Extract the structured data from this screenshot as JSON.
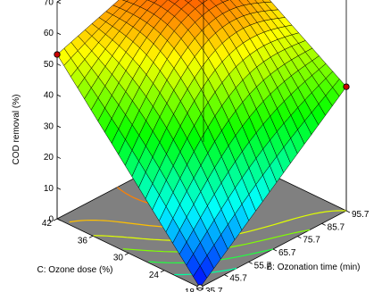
{
  "chart_data": {
    "type": "surface3d",
    "title": "",
    "zlabel": "COD removal  (%)",
    "xlabel": "C: Ozone dose (%)",
    "ylabel": "B: Ozonation time (min)",
    "z_ticks": [
      "0",
      "10",
      "20",
      "30",
      "40",
      "50",
      "60",
      "70"
    ],
    "x_ticks": [
      "18",
      "24",
      "30",
      "36",
      "42"
    ],
    "y_ticks": [
      "35.7",
      "45.7",
      "55.7",
      "65.7",
      "75.7",
      "85.7",
      "95.7"
    ],
    "x_range": [
      18,
      42
    ],
    "y_range": [
      35.7,
      95.7
    ],
    "z_range": [
      0,
      70
    ],
    "grid_size": 21,
    "surface_corners": [
      {
        "ozone_dose": 18,
        "ozonation_time": 35.7,
        "cod_removal": 0
      },
      {
        "ozone_dose": 42,
        "ozonation_time": 35.7,
        "cod_removal": 53
      },
      {
        "ozone_dose": 18,
        "ozonation_time": 95.7,
        "cod_removal": 40
      },
      {
        "ozone_dose": 42,
        "ozonation_time": 95.7,
        "cod_removal": 70
      }
    ],
    "design_points": [
      {
        "ozone_dose": 18,
        "ozonation_time": 35.7,
        "cod_removal": 0
      },
      {
        "ozone_dose": 42,
        "ozonation_time": 35.7,
        "cod_removal": 53
      },
      {
        "ozone_dose": 18,
        "ozonation_time": 95.7,
        "cod_removal": 40
      },
      {
        "ozone_dose": 42,
        "ozonation_time": 95.7,
        "cod_removal": 70
      }
    ],
    "colormap": [
      "#0000ff",
      "#00ffff",
      "#00ff00",
      "#ffff00",
      "#ff0000"
    ],
    "floor_color": "#808080",
    "contour_colors": [
      "#ff8000",
      "#ffc000",
      "#e0ff00",
      "#80ff00",
      "#20ff40",
      "#00ffa0"
    ]
  }
}
